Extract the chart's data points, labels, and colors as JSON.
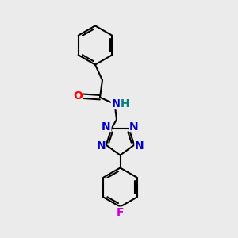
{
  "background_color": "#ebebeb",
  "bond_color": "#000000",
  "atom_colors": {
    "O": "#ff0000",
    "N": "#0000cc",
    "F": "#cc00cc",
    "H": "#008080",
    "C": "#000000"
  },
  "bond_lw": 1.5,
  "font_size": 10
}
